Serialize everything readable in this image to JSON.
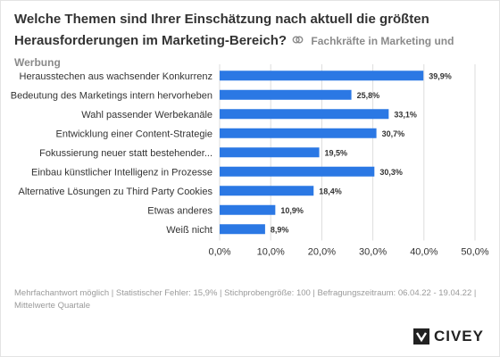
{
  "title": "Welche Themen sind Ihrer Einschätzung nach aktuell die größten Herausforderungen im Marketing-Bereich?",
  "subtitle": "Fachkräfte in Marketing und Werbung",
  "footer": {
    "line1": "Mehrfachantwort möglich | Statistischer Fehler: 15,9% | Stichprobengröße: 100 | Befragungszeitraum: 06.04.22 - 19.04.22 |",
    "line2": "Mittelwerte Quartale"
  },
  "brand": "CIVEY",
  "colors": {
    "bar": "#2b78e4",
    "text": "#333333",
    "grid": "#dddddd",
    "muted": "#9a9a9a"
  },
  "chart_data": {
    "type": "bar",
    "orientation": "horizontal",
    "categories": [
      "Herausstechen aus wachsender Konkurrenz",
      "Bedeutung des Marketings intern hervorheben",
      "Wahl passender Werbekanäle",
      "Entwicklung einer Content-Strategie",
      "Fokussierung neuer statt bestehender...",
      "Einbau künstlicher Intelligenz in Prozesse",
      "Alternative Lösungen zu Third Party Cookies",
      "Etwas anderes",
      "Weiß nicht"
    ],
    "values": [
      39.9,
      25.8,
      33.1,
      30.7,
      19.5,
      30.3,
      18.4,
      10.9,
      8.9
    ],
    "value_labels": [
      "39,9%",
      "25,8%",
      "33,1%",
      "30,7%",
      "19,5%",
      "30,3%",
      "18,4%",
      "10,9%",
      "8,9%"
    ],
    "xlim": [
      0,
      50
    ],
    "xticks": [
      0,
      10,
      20,
      30,
      40,
      50
    ],
    "xtick_labels": [
      "0,0%",
      "10,0%",
      "20,0%",
      "30,0%",
      "40,0%",
      "50,0%"
    ],
    "grid": true
  }
}
